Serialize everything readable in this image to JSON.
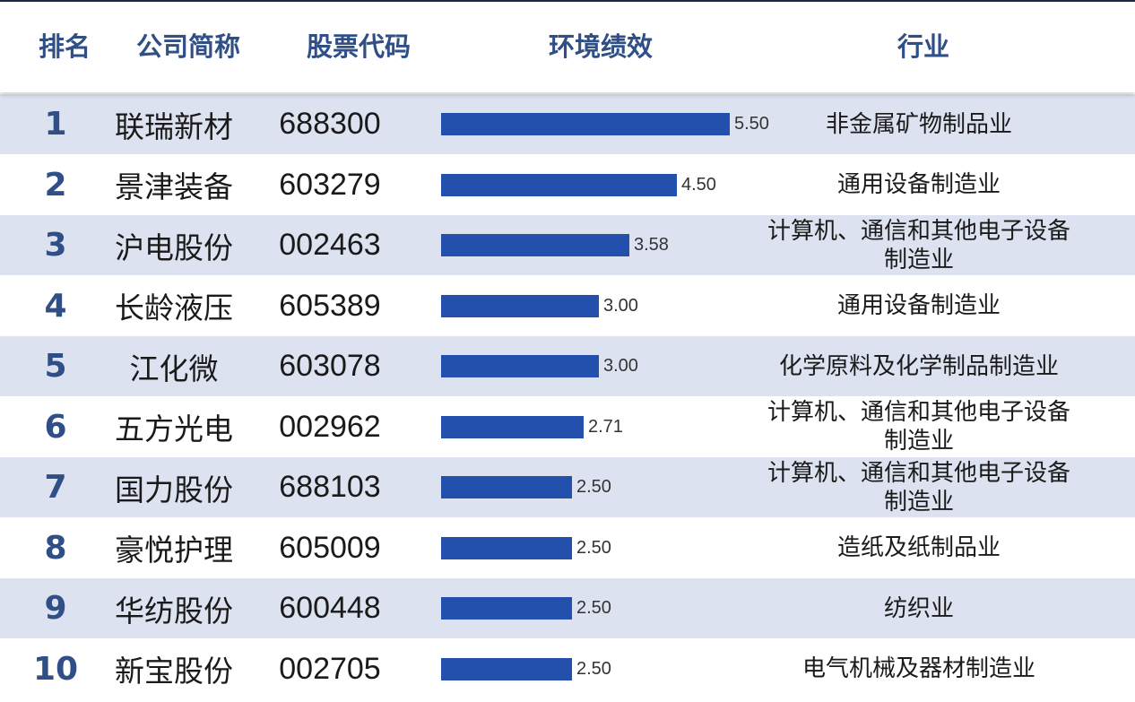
{
  "header": {
    "rank": "排名",
    "name": "公司简称",
    "code": "股票代码",
    "metric": "环境绩效",
    "industry": "行业"
  },
  "chart_data": {
    "type": "bar",
    "orientation": "horizontal",
    "title": "",
    "xlim": [
      0,
      5.5
    ],
    "columns": [
      "排名",
      "公司简称",
      "股票代码",
      "环境绩效",
      "行业"
    ],
    "rows": [
      {
        "rank": "1",
        "name": "联瑞新材",
        "code": "688300",
        "value": 5.5,
        "label": "5.50",
        "industry": [
          "非金属矿物制品业"
        ]
      },
      {
        "rank": "2",
        "name": "景津装备",
        "code": "603279",
        "value": 4.5,
        "label": "4.50",
        "industry": [
          "通用设备制造业"
        ]
      },
      {
        "rank": "3",
        "name": "沪电股份",
        "code": "002463",
        "value": 3.58,
        "label": "3.58",
        "industry": [
          "计算机、通信和其他电子设备",
          "制造业"
        ]
      },
      {
        "rank": "4",
        "name": "长龄液压",
        "code": "605389",
        "value": 3.0,
        "label": "3.00",
        "industry": [
          "通用设备制造业"
        ]
      },
      {
        "rank": "5",
        "name": "江化微",
        "code": "603078",
        "value": 3.0,
        "label": "3.00",
        "industry": [
          "化学原料及化学制品制造业"
        ]
      },
      {
        "rank": "6",
        "name": "五方光电",
        "code": "002962",
        "value": 2.71,
        "label": "2.71",
        "industry": [
          "计算机、通信和其他电子设备",
          "制造业"
        ]
      },
      {
        "rank": "7",
        "name": "国力股份",
        "code": "688103",
        "value": 2.5,
        "label": "2.50",
        "industry": [
          "计算机、通信和其他电子设备",
          "制造业"
        ]
      },
      {
        "rank": "8",
        "name": "豪悦护理",
        "code": "605009",
        "value": 2.5,
        "label": "2.50",
        "industry": [
          "造纸及纸制品业"
        ]
      },
      {
        "rank": "9",
        "name": "华纺股份",
        "code": "600448",
        "value": 2.5,
        "label": "2.50",
        "industry": [
          "纺织业"
        ]
      },
      {
        "rank": "10",
        "name": "新宝股份",
        "code": "002705",
        "value": 2.5,
        "label": "2.50",
        "industry": [
          "电气机械及器材制造业"
        ]
      }
    ]
  },
  "colors": {
    "bar": "#2350ad",
    "header_text": "#2f4f86",
    "row_band": "#dde2f0"
  }
}
